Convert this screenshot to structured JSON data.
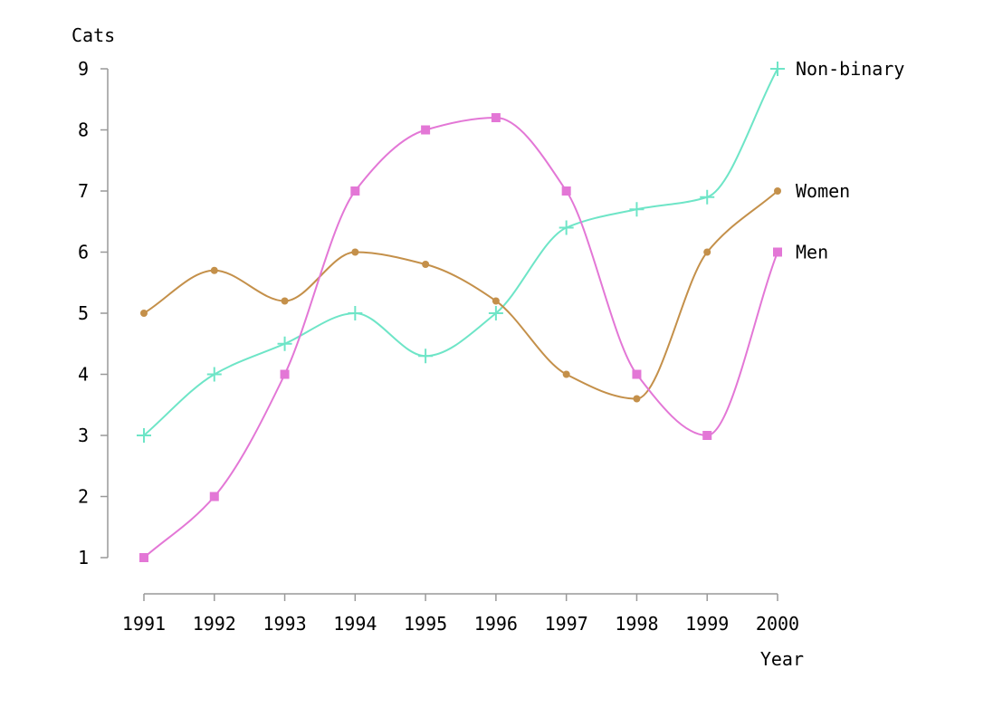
{
  "chart_data": {
    "type": "line",
    "xlabel": "Year",
    "ylabel": "Cats",
    "x": [
      1991,
      1992,
      1993,
      1994,
      1995,
      1996,
      1997,
      1998,
      1999,
      2000
    ],
    "xlim": [
      1991,
      2000
    ],
    "ylim": [
      1,
      9
    ],
    "yticks": [
      1,
      2,
      3,
      4,
      5,
      6,
      7,
      8,
      9
    ],
    "grid": false,
    "legend": "inline-right",
    "series": [
      {
        "name": "Non-binary",
        "color": "#6ee5c7",
        "marker": "plus",
        "values": [
          3,
          4,
          4.5,
          5,
          4.3,
          5,
          6.4,
          6.7,
          6.9,
          9
        ]
      },
      {
        "name": "Women",
        "color": "#c4904a",
        "marker": "circle",
        "values": [
          5,
          5.7,
          5.2,
          6,
          5.8,
          5.2,
          4,
          3.6,
          6,
          7
        ]
      },
      {
        "name": "Men",
        "color": "#e377d6",
        "marker": "square",
        "values": [
          1,
          2,
          4,
          7,
          8,
          8.2,
          7,
          4,
          3,
          6
        ]
      }
    ]
  }
}
